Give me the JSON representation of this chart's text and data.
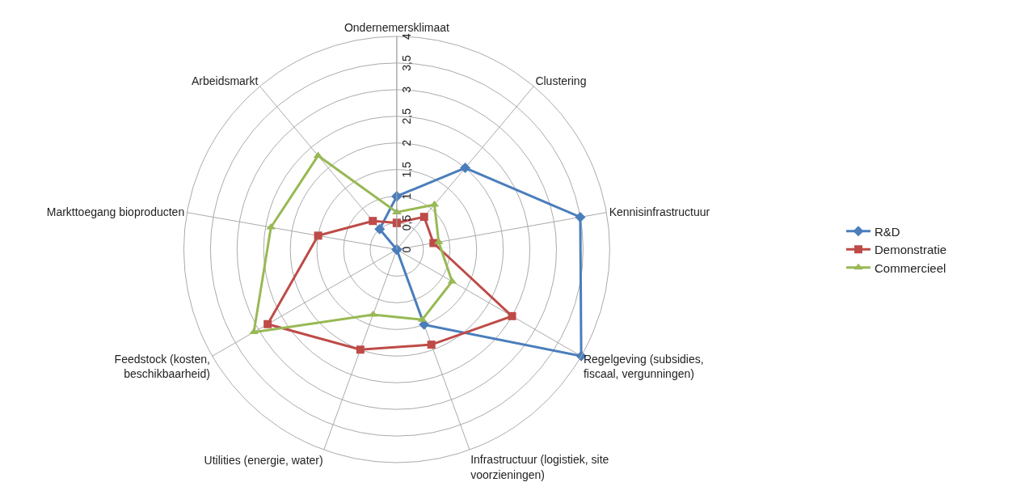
{
  "chart_data": {
    "type": "radar",
    "categories": [
      "Ondernemersklimaat",
      "Clustering",
      "Kennisinfrastructuur",
      "Regelgeving (subsidies, fiscaal, vergunningen)",
      "Infrastructuur (logistiek, site voorzieningen)",
      "Utilities (energie, water)",
      "Feedstock (kosten, beschikbaarheid)",
      "Markttoegang bioproducten",
      "Arbeidsmarkt"
    ],
    "series": [
      {
        "name": "R&D",
        "color": "#4a7ebb",
        "marker": "diamond",
        "values": [
          1,
          2,
          3.5,
          4,
          1.5,
          0,
          0,
          0,
          0.5
        ]
      },
      {
        "name": "Demonstratie",
        "color": "#be4b48",
        "marker": "square",
        "values": [
          0.5,
          0.8,
          0.7,
          2.5,
          1.9,
          2,
          2.8,
          1.5,
          0.7
        ]
      },
      {
        "name": "Commercieel",
        "color": "#98b954",
        "marker": "triangle",
        "values": [
          0.7,
          1.1,
          0.8,
          1.2,
          1.4,
          1.3,
          3.1,
          2.4,
          2.3
        ]
      }
    ],
    "ylim": [
      0,
      4
    ],
    "yticks": [
      0,
      {
        "value": 0.5,
        "label": "0,5"
      },
      1,
      {
        "value": 1.5,
        "label": "1,5"
      },
      2,
      {
        "value": 2.5,
        "label": "2,5"
      },
      3,
      {
        "value": 3.5,
        "label": "3,5"
      },
      4
    ],
    "grid": true,
    "legend": "right",
    "line_style": "solid"
  }
}
